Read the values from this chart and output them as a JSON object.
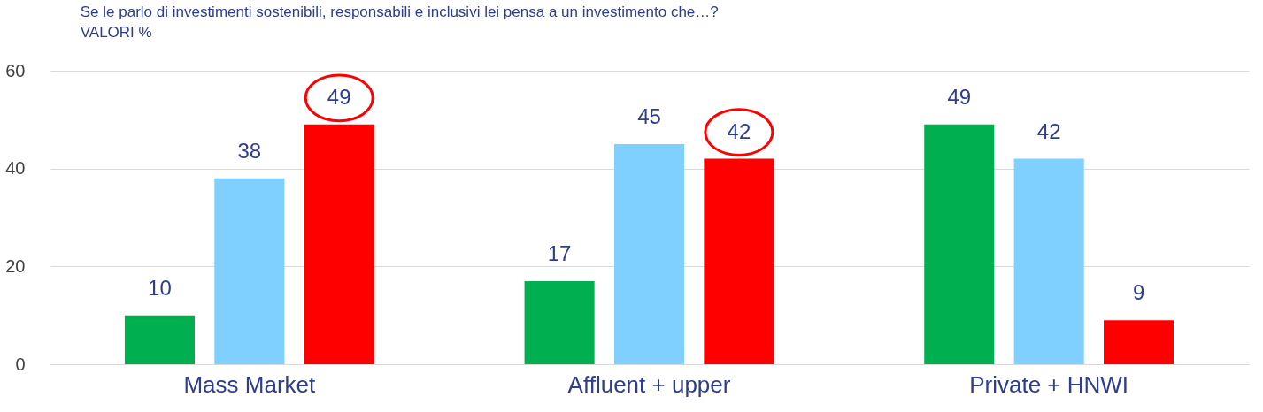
{
  "chart_data": {
    "type": "bar",
    "title": "Se le parlo di investimenti sostenibili, responsabili e inclusivi lei pensa a un investimento che…?",
    "subtitle": "VALORI %",
    "categories": [
      "Mass Market",
      "Affluent + upper",
      "Private + HNWI"
    ],
    "series": [
      {
        "color": "#00b050",
        "values": [
          10,
          17,
          49
        ]
      },
      {
        "color": "#7fd0ff",
        "values": [
          38,
          45,
          42
        ]
      },
      {
        "color": "#ff0000",
        "values": [
          49,
          42,
          9
        ]
      }
    ],
    "ylim": [
      0,
      60
    ],
    "yticks": [
      0,
      20,
      40,
      60
    ],
    "grid": "y",
    "data_labels": true
  }
}
